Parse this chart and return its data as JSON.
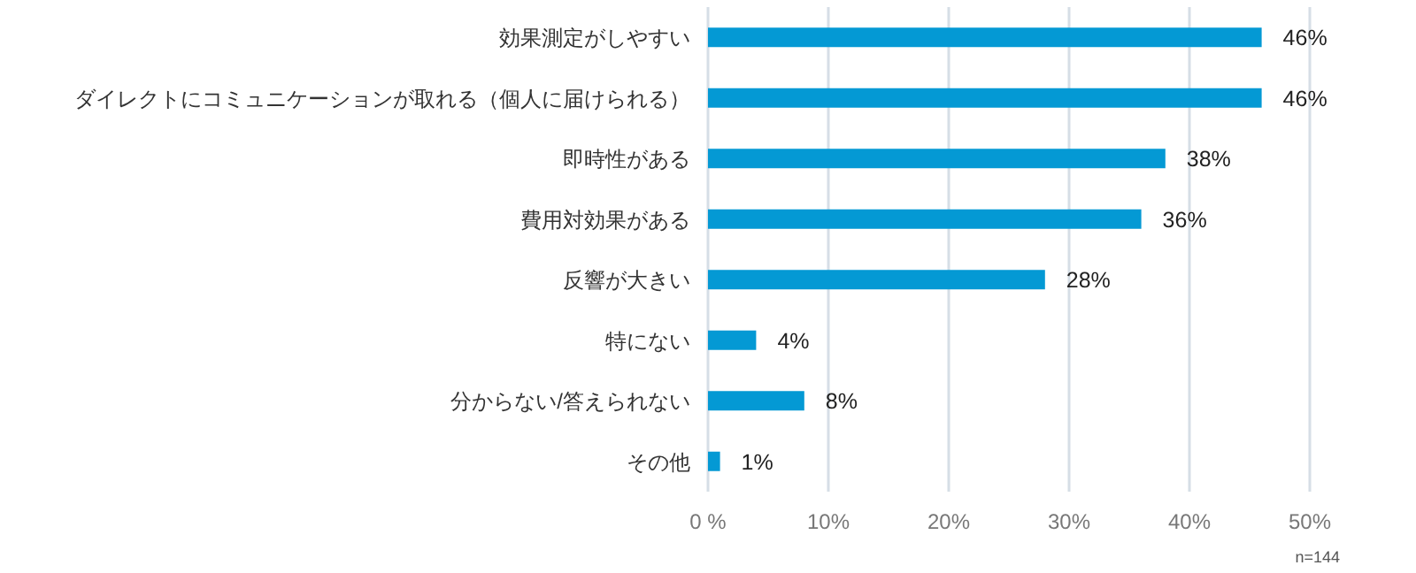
{
  "chart_data": {
    "type": "bar",
    "orientation": "horizontal",
    "categories": [
      "効果測定がしやすい",
      "ダイレクトにコミュニケーションが取れる（個人に届けられる）",
      "即時性がある",
      "費用対効果がある",
      "反響が大きい",
      "特にない",
      "分からない/答えられない",
      "その他"
    ],
    "values": [
      46,
      46,
      38,
      36,
      28,
      4,
      8,
      1
    ],
    "value_labels": [
      "46%",
      "46%",
      "38%",
      "36%",
      "28%",
      "4%",
      "8%",
      "1%"
    ],
    "color": "#0499d4",
    "xlim": [
      0,
      50
    ],
    "xticks": [
      {
        "value": 0,
        "label": "0 %"
      },
      {
        "value": 10,
        "label": "10%"
      },
      {
        "value": 20,
        "label": "20%"
      },
      {
        "value": 30,
        "label": "30%"
      },
      {
        "value": 40,
        "label": "40%"
      },
      {
        "value": 50,
        "label": "50%"
      }
    ],
    "grid": "x",
    "annotations": [
      "n=144"
    ]
  }
}
